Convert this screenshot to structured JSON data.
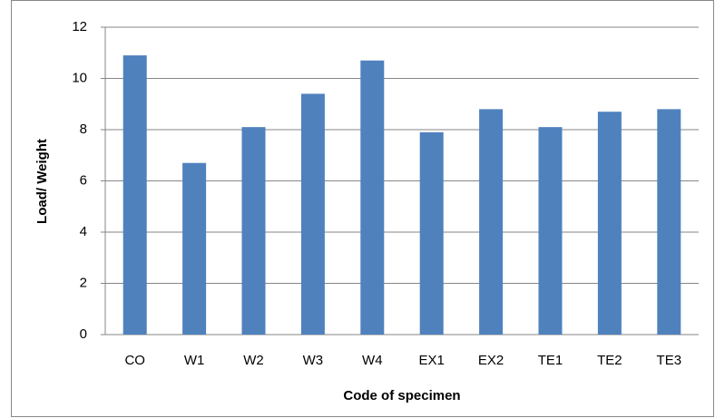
{
  "chart_data": {
    "type": "bar",
    "xlabel": "Code of specimen",
    "ylabel": "Load/ Weight",
    "categories": [
      "CO",
      "W1",
      "W2",
      "W3",
      "W4",
      "EX1",
      "EX2",
      "TE1",
      "TE2",
      "TE3"
    ],
    "values": [
      10.9,
      6.7,
      8.1,
      9.4,
      10.7,
      7.9,
      8.8,
      8.1,
      8.7,
      8.8
    ],
    "color": "#4f81bd",
    "ylim": [
      0,
      12
    ],
    "yticks": [
      0,
      2,
      4,
      6,
      8,
      10,
      12
    ],
    "grid": true
  }
}
